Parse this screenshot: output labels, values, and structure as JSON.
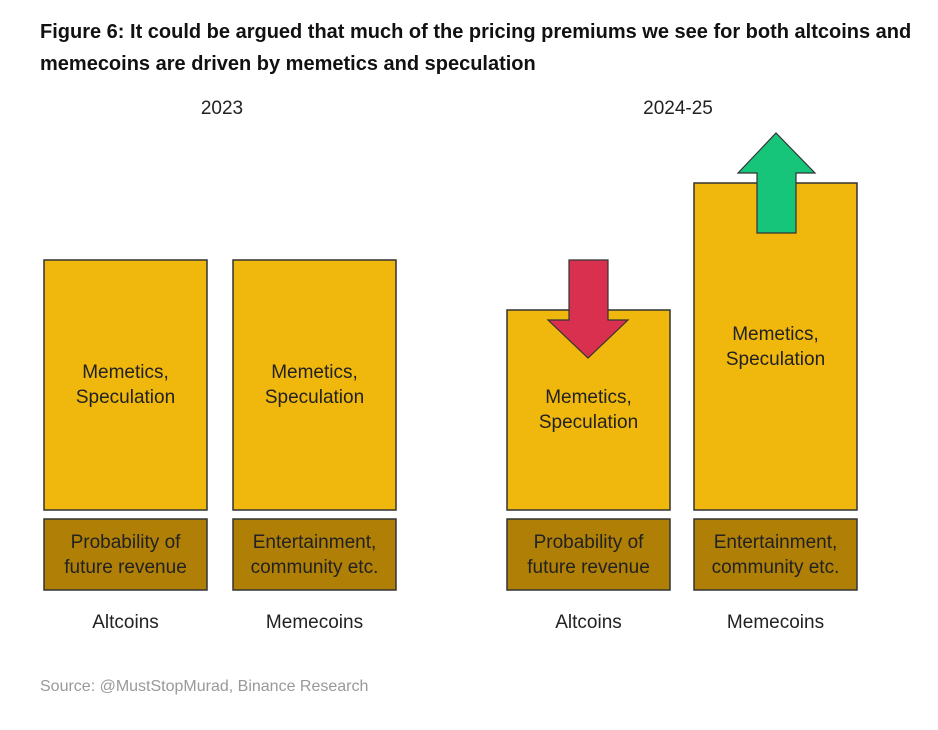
{
  "title": "Figure 6: It could be argued that much of the pricing premiums we see for both altcoins and memecoins are driven by memetics and speculation",
  "panels": [
    {
      "label": "2023",
      "columns": [
        {
          "top": [
            "Memetics,",
            "Speculation"
          ],
          "bottom": [
            "Probability of",
            "future revenue"
          ],
          "name": "Altcoins"
        },
        {
          "top": [
            "Memetics,",
            "Speculation"
          ],
          "bottom": [
            "Entertainment,",
            "community etc."
          ],
          "name": "Memecoins"
        }
      ]
    },
    {
      "label": "2024-25",
      "columns": [
        {
          "top": [
            "Memetics,",
            "Speculation"
          ],
          "bottom": [
            "Probability of",
            "future revenue"
          ],
          "name": "Altcoins"
        },
        {
          "top": [
            "Memetics,",
            "Speculation"
          ],
          "bottom": [
            "Entertainment,",
            "community etc."
          ],
          "name": "Memecoins"
        }
      ]
    }
  ],
  "source": "Source: @MustStopMurad, Binance Research"
}
